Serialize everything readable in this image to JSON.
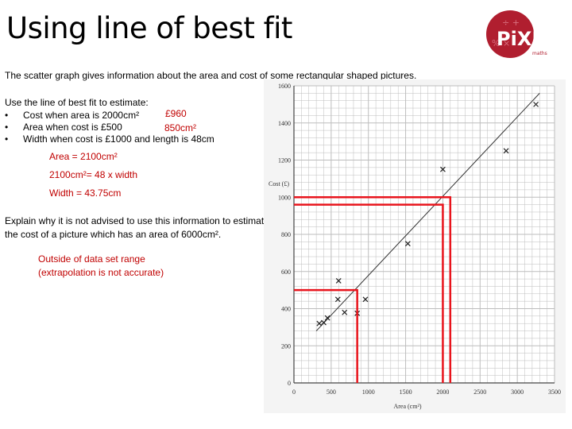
{
  "slide": {
    "title": "Using line of best fit",
    "intro": "The scatter graph gives information about the area and cost of some rectangular shaped pictures.",
    "prompt": "Use the line of best fit to estimate:",
    "tasks": [
      "Cost when area is 2000cm²",
      "Area when cost is £500",
      "Width when cost is £1000 and length is 48cm"
    ],
    "answers": {
      "cost": "£960",
      "area": "850cm²",
      "width_step1": "Area = 2100cm²",
      "width_step2": "2100cm²= 48 x width",
      "width_step3": "Width = 43.75cm"
    },
    "explain": "Explain why it is not advised to use this information to estimate the cost of a picture which has an area of 6000cm².",
    "explain_answer_line1": "Outside of data set range",
    "explain_answer_line2": "(extrapolation is not accurate)"
  },
  "logo": {
    "text": "PiXL",
    "sub": "maths",
    "color": "#b01e2f"
  },
  "chart_data": {
    "type": "scatter",
    "xlabel": "Area (cm²)",
    "ylabel": "Cost (£)",
    "xlim": [
      0,
      3500
    ],
    "ylim": [
      0,
      1600
    ],
    "xticks": [
      0,
      500,
      1000,
      1500,
      2000,
      2500,
      3000,
      3500
    ],
    "yticks": [
      0,
      200,
      400,
      600,
      800,
      1000,
      1200,
      1400,
      1600
    ],
    "grid": true,
    "points": [
      {
        "x": 340,
        "y": 320
      },
      {
        "x": 400,
        "y": 325
      },
      {
        "x": 450,
        "y": 350
      },
      {
        "x": 590,
        "y": 450
      },
      {
        "x": 600,
        "y": 550
      },
      {
        "x": 680,
        "y": 380
      },
      {
        "x": 850,
        "y": 375
      },
      {
        "x": 960,
        "y": 450
      },
      {
        "x": 1530,
        "y": 750
      },
      {
        "x": 2000,
        "y": 1150
      },
      {
        "x": 2850,
        "y": 1250
      },
      {
        "x": 3250,
        "y": 1500
      }
    ],
    "best_fit": [
      [
        300,
        280
      ],
      [
        3300,
        1560
      ]
    ],
    "readings": [
      {
        "x": 2000,
        "y": 960
      },
      {
        "x": 850,
        "y": 500
      },
      {
        "x": 2100,
        "y": 1000
      }
    ],
    "colors": {
      "grid": "#bdbdbd",
      "line": "#333333",
      "reading": "#e8141c"
    }
  }
}
